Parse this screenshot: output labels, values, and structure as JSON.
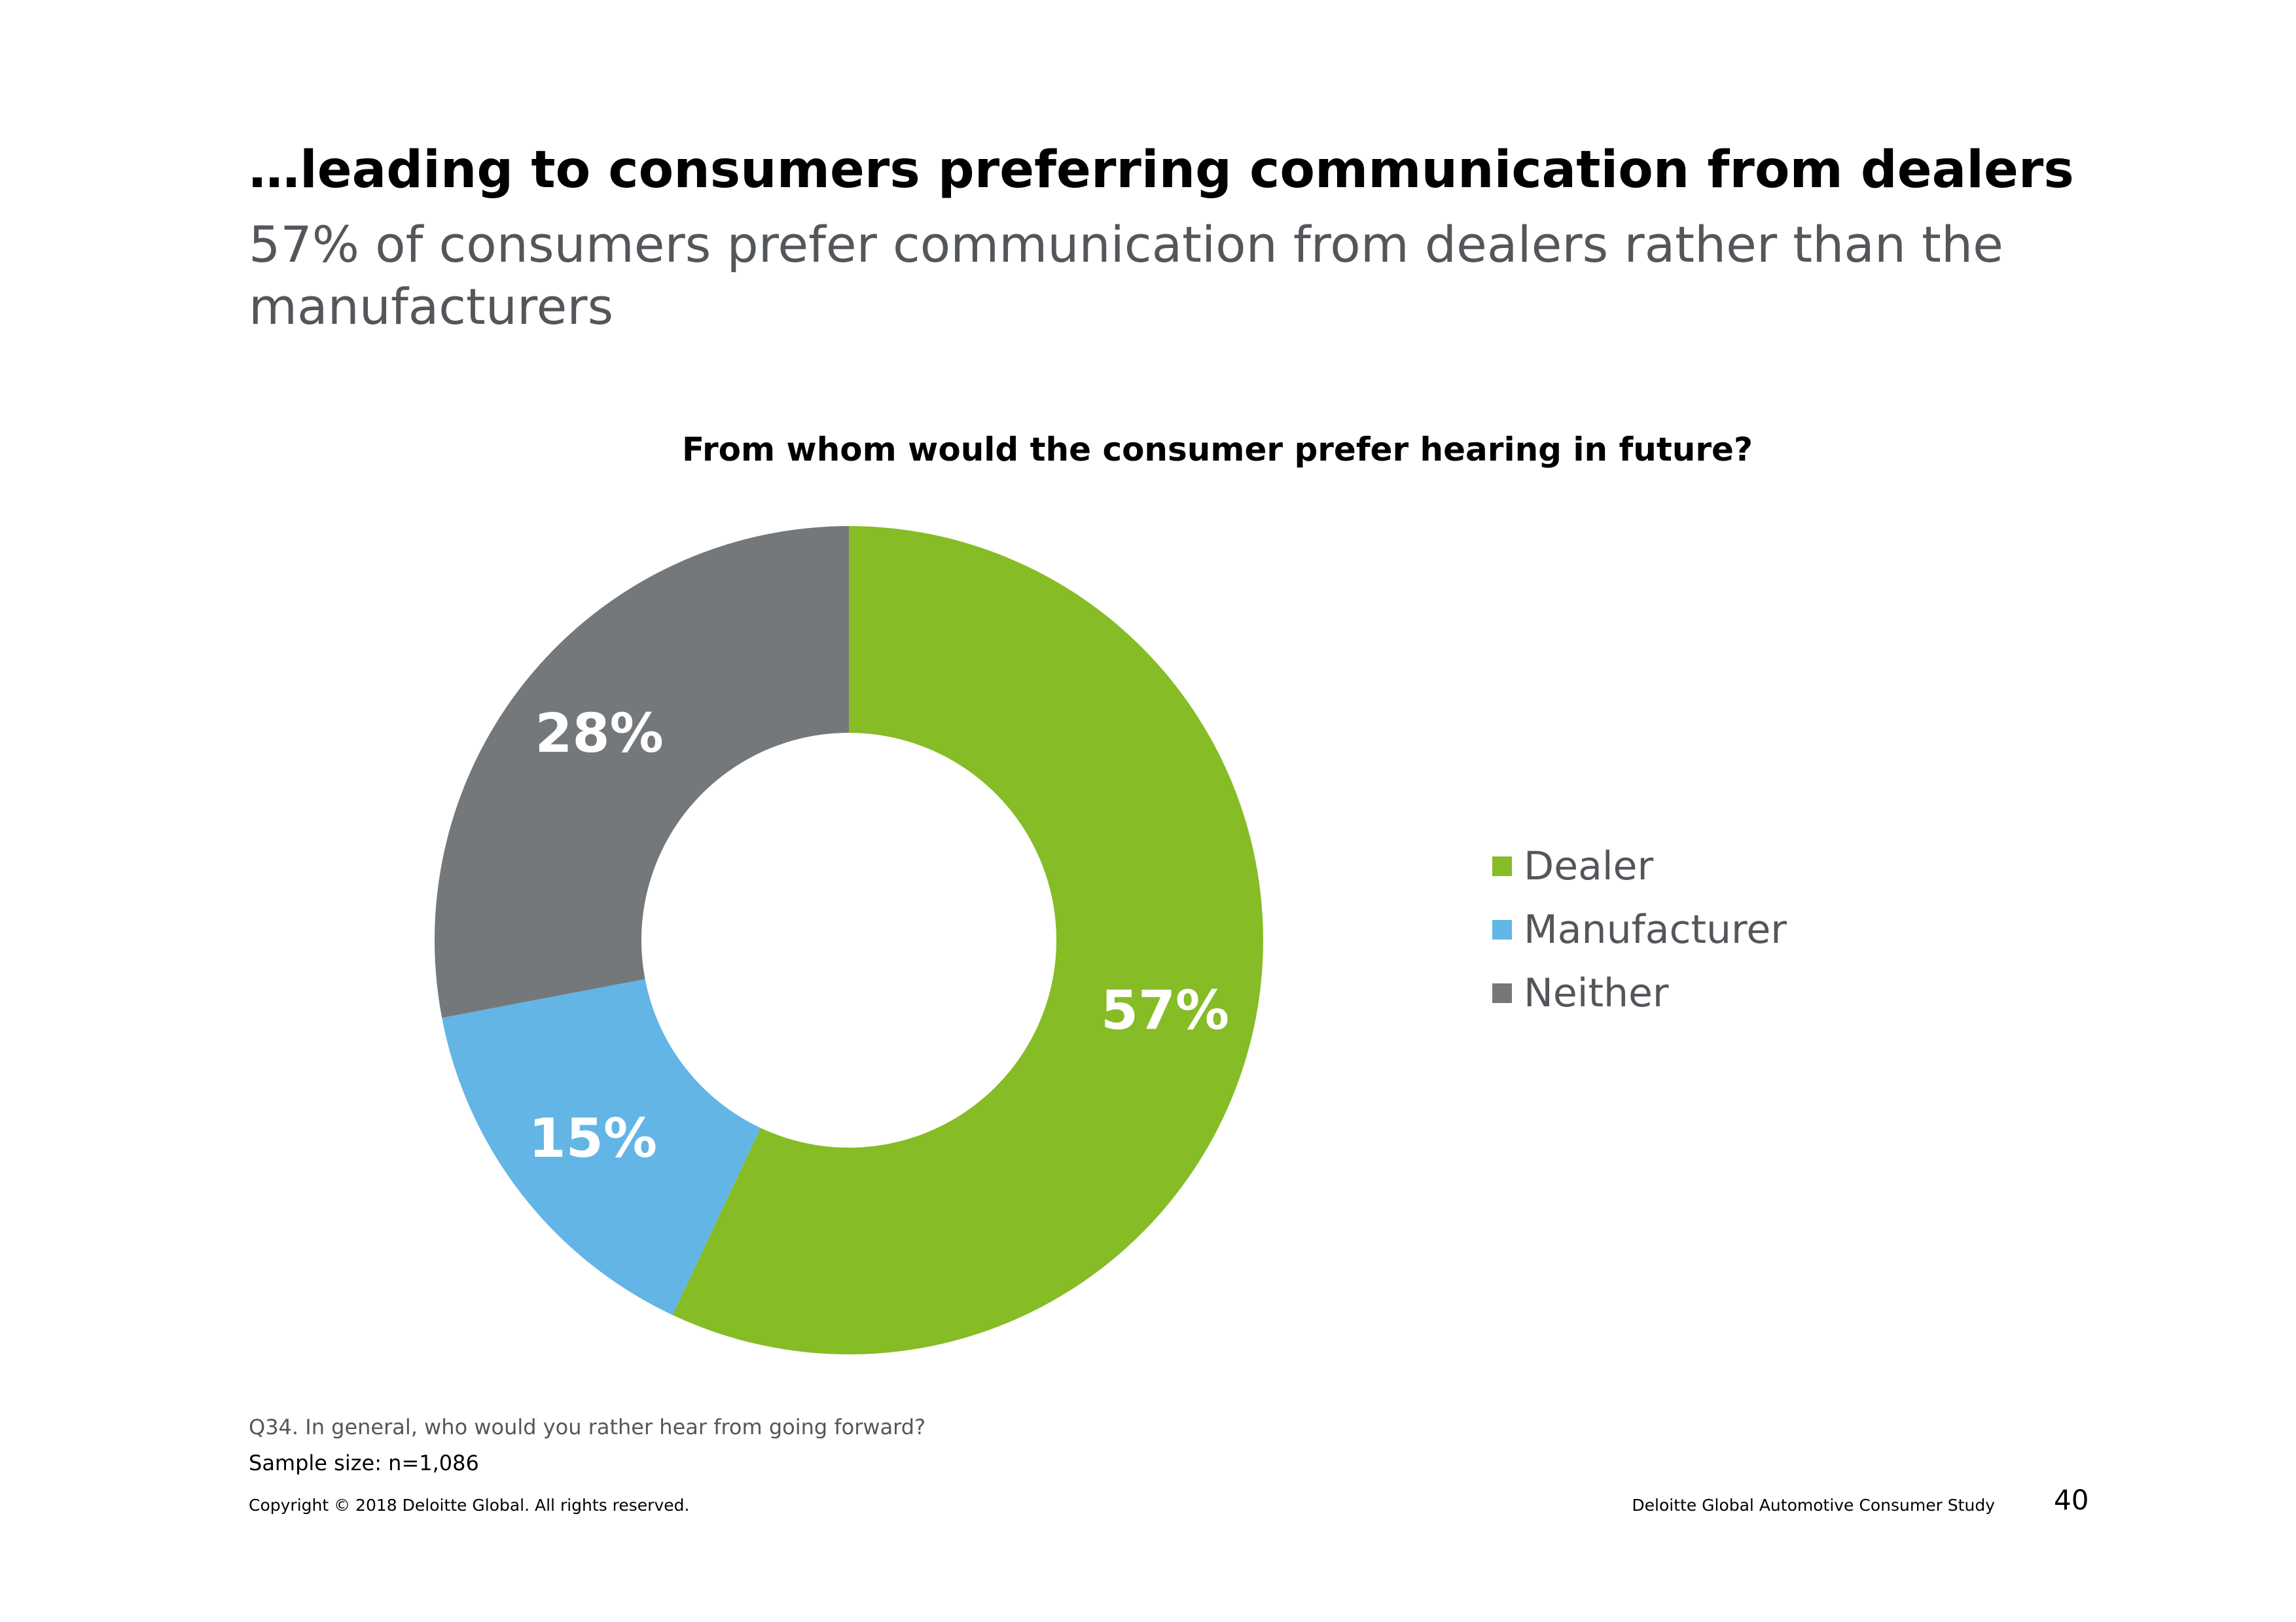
{
  "slide": {
    "title": "…leading to consumers preferring communication from dealers",
    "subtitle": "57% of consumers prefer communication from dealers rather than the manufacturers"
  },
  "chart_data": {
    "type": "pie",
    "donut": true,
    "title": "From whom would the consumer prefer hearing in future?",
    "categories": [
      "Dealer",
      "Manufacturer",
      "Neither"
    ],
    "values": [
      57,
      15,
      28
    ],
    "labels": [
      "57%",
      "15%",
      "28%"
    ],
    "unit": "%",
    "colors": [
      "#86bc25",
      "#62b5e5",
      "#75787b"
    ],
    "legend": "right"
  },
  "footer": {
    "question": "Q34. In general, who would you rather hear from going forward?",
    "sample": "Sample size: n=1,086",
    "copyright": "Copyright © 2018 Deloitte Global. All rights reserved.",
    "study": "Deloitte Global Automotive Consumer Study",
    "page_number": "40"
  }
}
